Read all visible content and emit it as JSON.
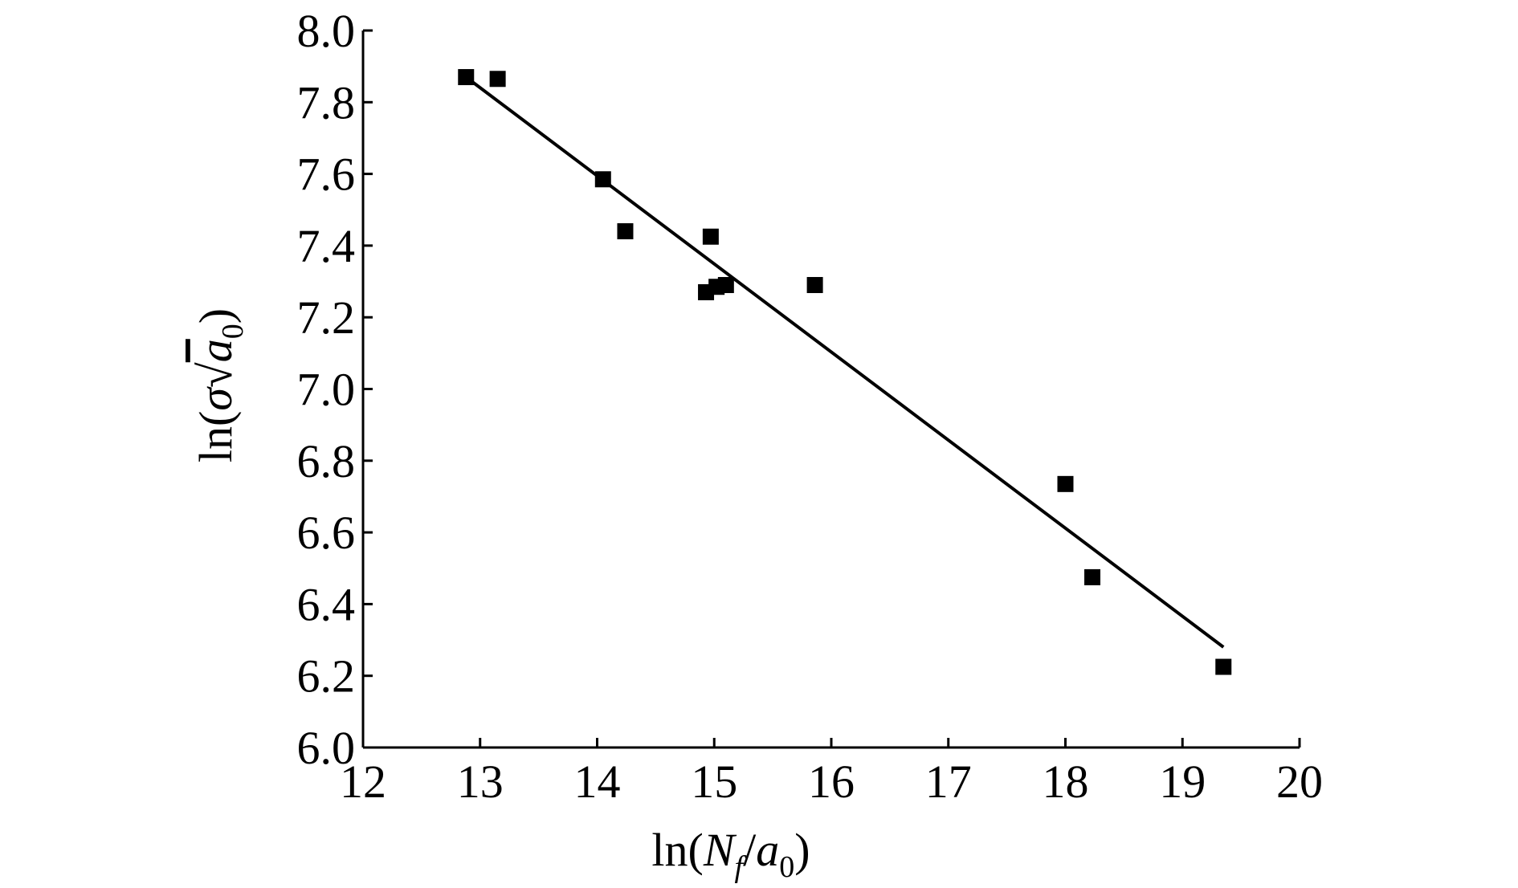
{
  "chart_data": {
    "type": "scatter",
    "title": "",
    "xlabel": {
      "prefix": "ln(",
      "var": "N",
      "var_sub": "f",
      "sep": "/",
      "var2": "a",
      "var2_sub": "0",
      "suffix": ")"
    },
    "ylabel": {
      "prefix": "ln(",
      "sigma": "σ",
      "radical": "√",
      "var": "a",
      "var_sub": "0",
      "suffix": ")"
    },
    "xlim": [
      12,
      20
    ],
    "ylim": [
      6.0,
      8.0
    ],
    "xticks": [
      "12",
      "13",
      "14",
      "15",
      "16",
      "17",
      "18",
      "19",
      "20"
    ],
    "yticks": [
      "6.0",
      "6.2",
      "6.4",
      "6.6",
      "6.8",
      "7.0",
      "7.2",
      "7.4",
      "7.6",
      "7.8",
      "8.0"
    ],
    "grid": false,
    "legend": "none",
    "marker": "filled-square",
    "color": "#000000",
    "points": [
      {
        "x": 12.88,
        "y": 7.87
      },
      {
        "x": 13.15,
        "y": 7.865
      },
      {
        "x": 14.05,
        "y": 7.585
      },
      {
        "x": 14.24,
        "y": 7.44
      },
      {
        "x": 14.93,
        "y": 7.27
      },
      {
        "x": 14.97,
        "y": 7.425
      },
      {
        "x": 15.02,
        "y": 7.285
      },
      {
        "x": 15.1,
        "y": 7.29
      },
      {
        "x": 15.86,
        "y": 7.29
      },
      {
        "x": 18.0,
        "y": 6.735
      },
      {
        "x": 18.23,
        "y": 6.475
      },
      {
        "x": 19.35,
        "y": 6.225
      }
    ],
    "fit_line": {
      "x": [
        12.9,
        19.35
      ],
      "y": [
        7.865,
        6.28
      ]
    }
  }
}
